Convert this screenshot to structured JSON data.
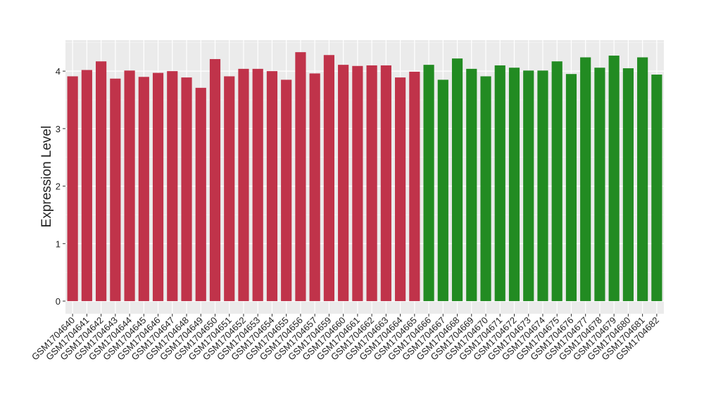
{
  "chart_data": {
    "type": "bar",
    "y_label": "Expression Level",
    "categories": [
      "GSM1704640",
      "GSM1704641",
      "GSM1704642",
      "GSM1704643",
      "GSM1704644",
      "GSM1704645",
      "GSM1704646",
      "GSM1704647",
      "GSM1704648",
      "GSM1704649",
      "GSM1704650",
      "GSM1704651",
      "GSM1704652",
      "GSM1704653",
      "GSM1704654",
      "GSM1704655",
      "GSM1704656",
      "GSM1704657",
      "GSM1704659",
      "GSM1704660",
      "GSM1704661",
      "GSM1704662",
      "GSM1704663",
      "GSM1704664",
      "GSM1704665",
      "GSM1704666",
      "GSM1704667",
      "GSM1704668",
      "GSM1704669",
      "GSM1704670",
      "GSM1704671",
      "GSM1704672",
      "GSM1704673",
      "GSM1704674",
      "GSM1704675",
      "GSM1704676",
      "GSM1704677",
      "GSM1704678",
      "GSM1704679",
      "GSM1704680",
      "GSM1704681",
      "GSM1704682"
    ],
    "values": [
      3.91,
      4.02,
      4.17,
      3.87,
      4.01,
      3.9,
      3.97,
      4.0,
      3.89,
      3.71,
      4.21,
      3.91,
      4.04,
      4.04,
      4.0,
      3.85,
      4.33,
      3.96,
      4.28,
      4.11,
      4.09,
      4.1,
      4.1,
      3.89,
      3.99,
      4.11,
      3.85,
      4.22,
      4.04,
      3.91,
      4.1,
      4.06,
      4.01,
      4.01,
      4.17,
      3.95,
      4.24,
      4.06,
      4.27,
      4.05,
      4.24,
      3.94
    ],
    "colors": [
      "#c0334a",
      "#c0334a",
      "#c0334a",
      "#c0334a",
      "#c0334a",
      "#c0334a",
      "#c0334a",
      "#c0334a",
      "#c0334a",
      "#c0334a",
      "#c0334a",
      "#c0334a",
      "#c0334a",
      "#c0334a",
      "#c0334a",
      "#c0334a",
      "#c0334a",
      "#c0334a",
      "#c0334a",
      "#c0334a",
      "#c0334a",
      "#c0334a",
      "#c0334a",
      "#c0334a",
      "#c0334a",
      "#228b22",
      "#228b22",
      "#228b22",
      "#228b22",
      "#228b22",
      "#228b22",
      "#228b22",
      "#228b22",
      "#228b22",
      "#228b22",
      "#228b22",
      "#228b22",
      "#228b22",
      "#228b22",
      "#228b22",
      "#228b22",
      "#228b22"
    ],
    "ylim": [
      -0.22,
      4.54
    ],
    "yticks": [
      0,
      1,
      2,
      3,
      4
    ],
    "minor_yticks": [
      0.5,
      1.5,
      2.5,
      3.5,
      4.5
    ],
    "grid": true
  }
}
